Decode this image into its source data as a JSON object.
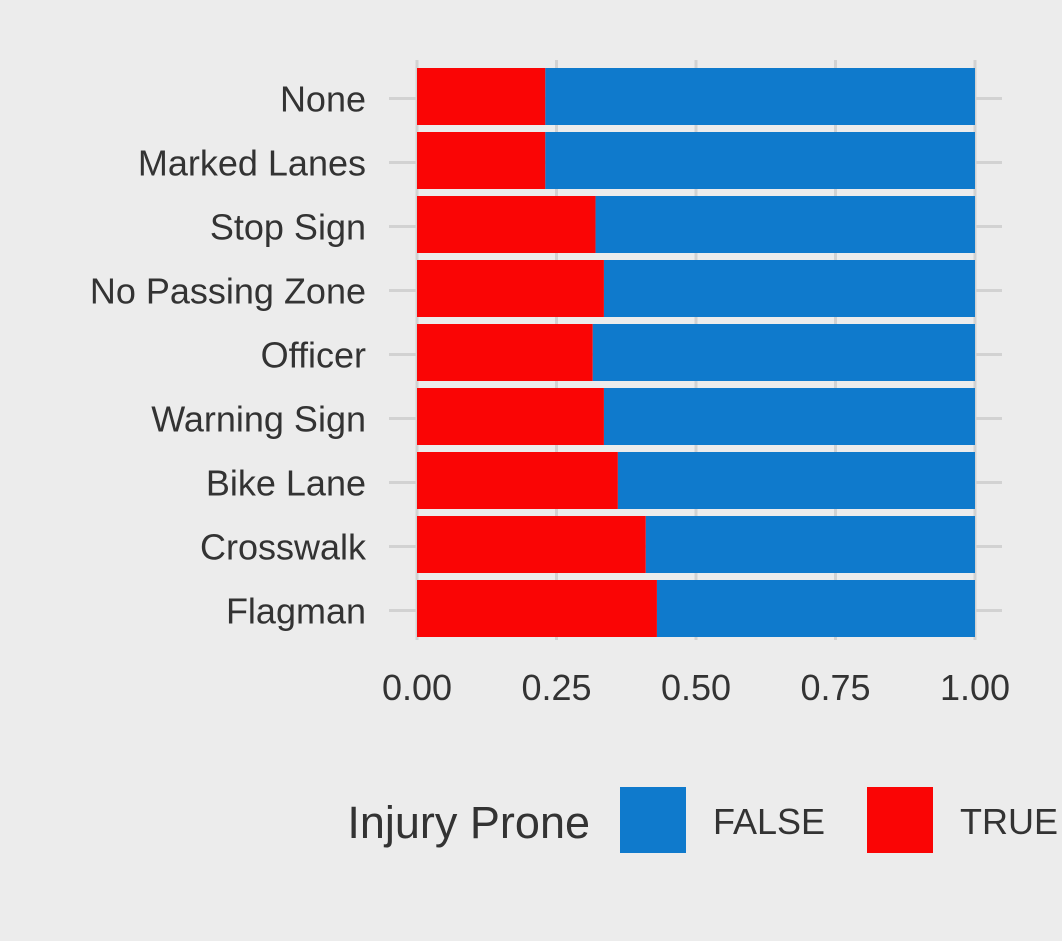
{
  "chart_data": {
    "type": "bar",
    "orientation": "horizontal",
    "stacked": true,
    "categories": [
      "None",
      "Marked Lanes",
      "Stop Sign",
      "No Passing Zone",
      "Officer",
      "Warning Sign",
      "Bike Lane",
      "Crosswalk",
      "Flagman"
    ],
    "series": [
      {
        "name": "TRUE",
        "color": "#fa0505",
        "values": [
          0.23,
          0.23,
          0.32,
          0.335,
          0.315,
          0.335,
          0.36,
          0.41,
          0.43
        ]
      },
      {
        "name": "FALSE",
        "color": "#0f7acc",
        "values": [
          0.77,
          0.77,
          0.68,
          0.665,
          0.685,
          0.665,
          0.64,
          0.59,
          0.57
        ]
      }
    ],
    "xlim": [
      0,
      1
    ],
    "xticks": [
      "0.00",
      "0.25",
      "0.50",
      "0.75",
      "1.00"
    ],
    "xtick_values": [
      0,
      0.25,
      0.5,
      0.75,
      1
    ],
    "grid": true,
    "legend": {
      "title": "Injury Prone",
      "position": "bottom",
      "entries": [
        {
          "label": "FALSE",
          "color": "#0f7acc"
        },
        {
          "label": "TRUE",
          "color": "#fa0505"
        }
      ]
    }
  }
}
